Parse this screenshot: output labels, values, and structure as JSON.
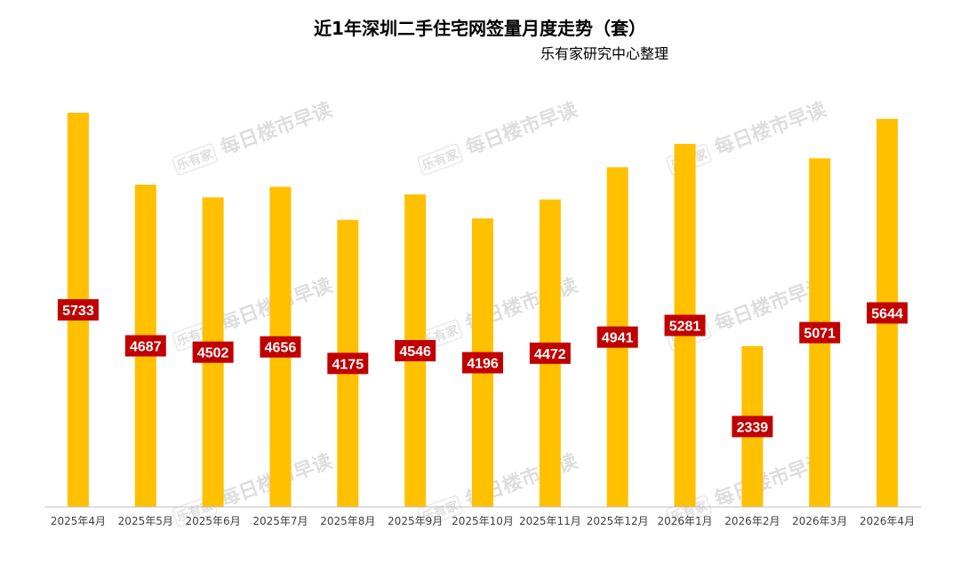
{
  "title": "近1年深圳二手住宅网签量月度走势（套）",
  "subtitle": "乐有家研究中心整理",
  "watermark": {
    "logo": "乐有家",
    "text": "每日楼市早读"
  },
  "colors": {
    "bar": "#FFC000",
    "label_bg": "#C00000",
    "label_text": "#FFFFFF",
    "axis": "#BFBFBF",
    "tick_text": "#404040"
  },
  "chart_data": {
    "type": "bar",
    "title": "近1年深圳二手住宅网签量月度走势（套）",
    "subtitle": "乐有家研究中心整理",
    "categories": [
      "2025年4月",
      "2025年5月",
      "2025年6月",
      "2025年7月",
      "2025年8月",
      "2025年9月",
      "2025年10月",
      "2025年11月",
      "2025年12月",
      "2026年1月",
      "2026年2月",
      "2026年3月",
      "2026年4月"
    ],
    "values": [
      5733,
      4687,
      4502,
      4656,
      4175,
      4546,
      4196,
      4472,
      4941,
      5281,
      2339,
      5071,
      5644
    ],
    "ylim": [
      0,
      5733
    ],
    "grid": false,
    "legend": "none"
  }
}
